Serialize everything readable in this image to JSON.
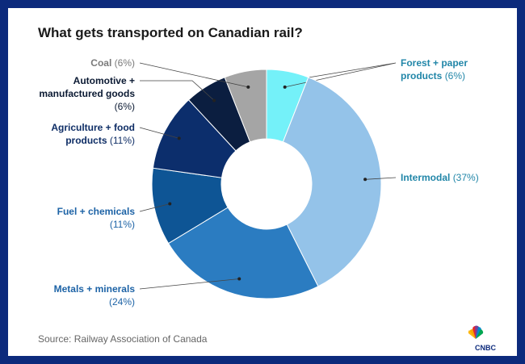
{
  "chart_data": {
    "type": "donut",
    "title": "What gets transported on Canadian rail?",
    "categories": [
      "Forest + paper products",
      "Intermodal",
      "Metals + minerals",
      "Fuel + chemicals",
      "Agriculture + food products",
      "Automotive + manufactured goods",
      "Coal"
    ],
    "values": [
      6,
      37,
      24,
      11,
      11,
      6,
      6
    ],
    "value_labels": [
      "(6%)",
      "(37%)",
      "(24%)",
      "(11%)",
      "(11%)",
      "(6%)",
      "(6%)"
    ],
    "colors": [
      "#74f1f9",
      "#94c3e9",
      "#2b7cc1",
      "#0e5595",
      "#0c2e6c",
      "#0b1e40",
      "#a5a5a5"
    ],
    "label_colors": [
      "#2186a8",
      "#2186a8",
      "#1d63a6",
      "#1d63a6",
      "#0f2e66",
      "#0b1a33",
      "#7a7a7a"
    ],
    "source": "Source: Railway Association of Canada",
    "logo": "CNBC"
  }
}
